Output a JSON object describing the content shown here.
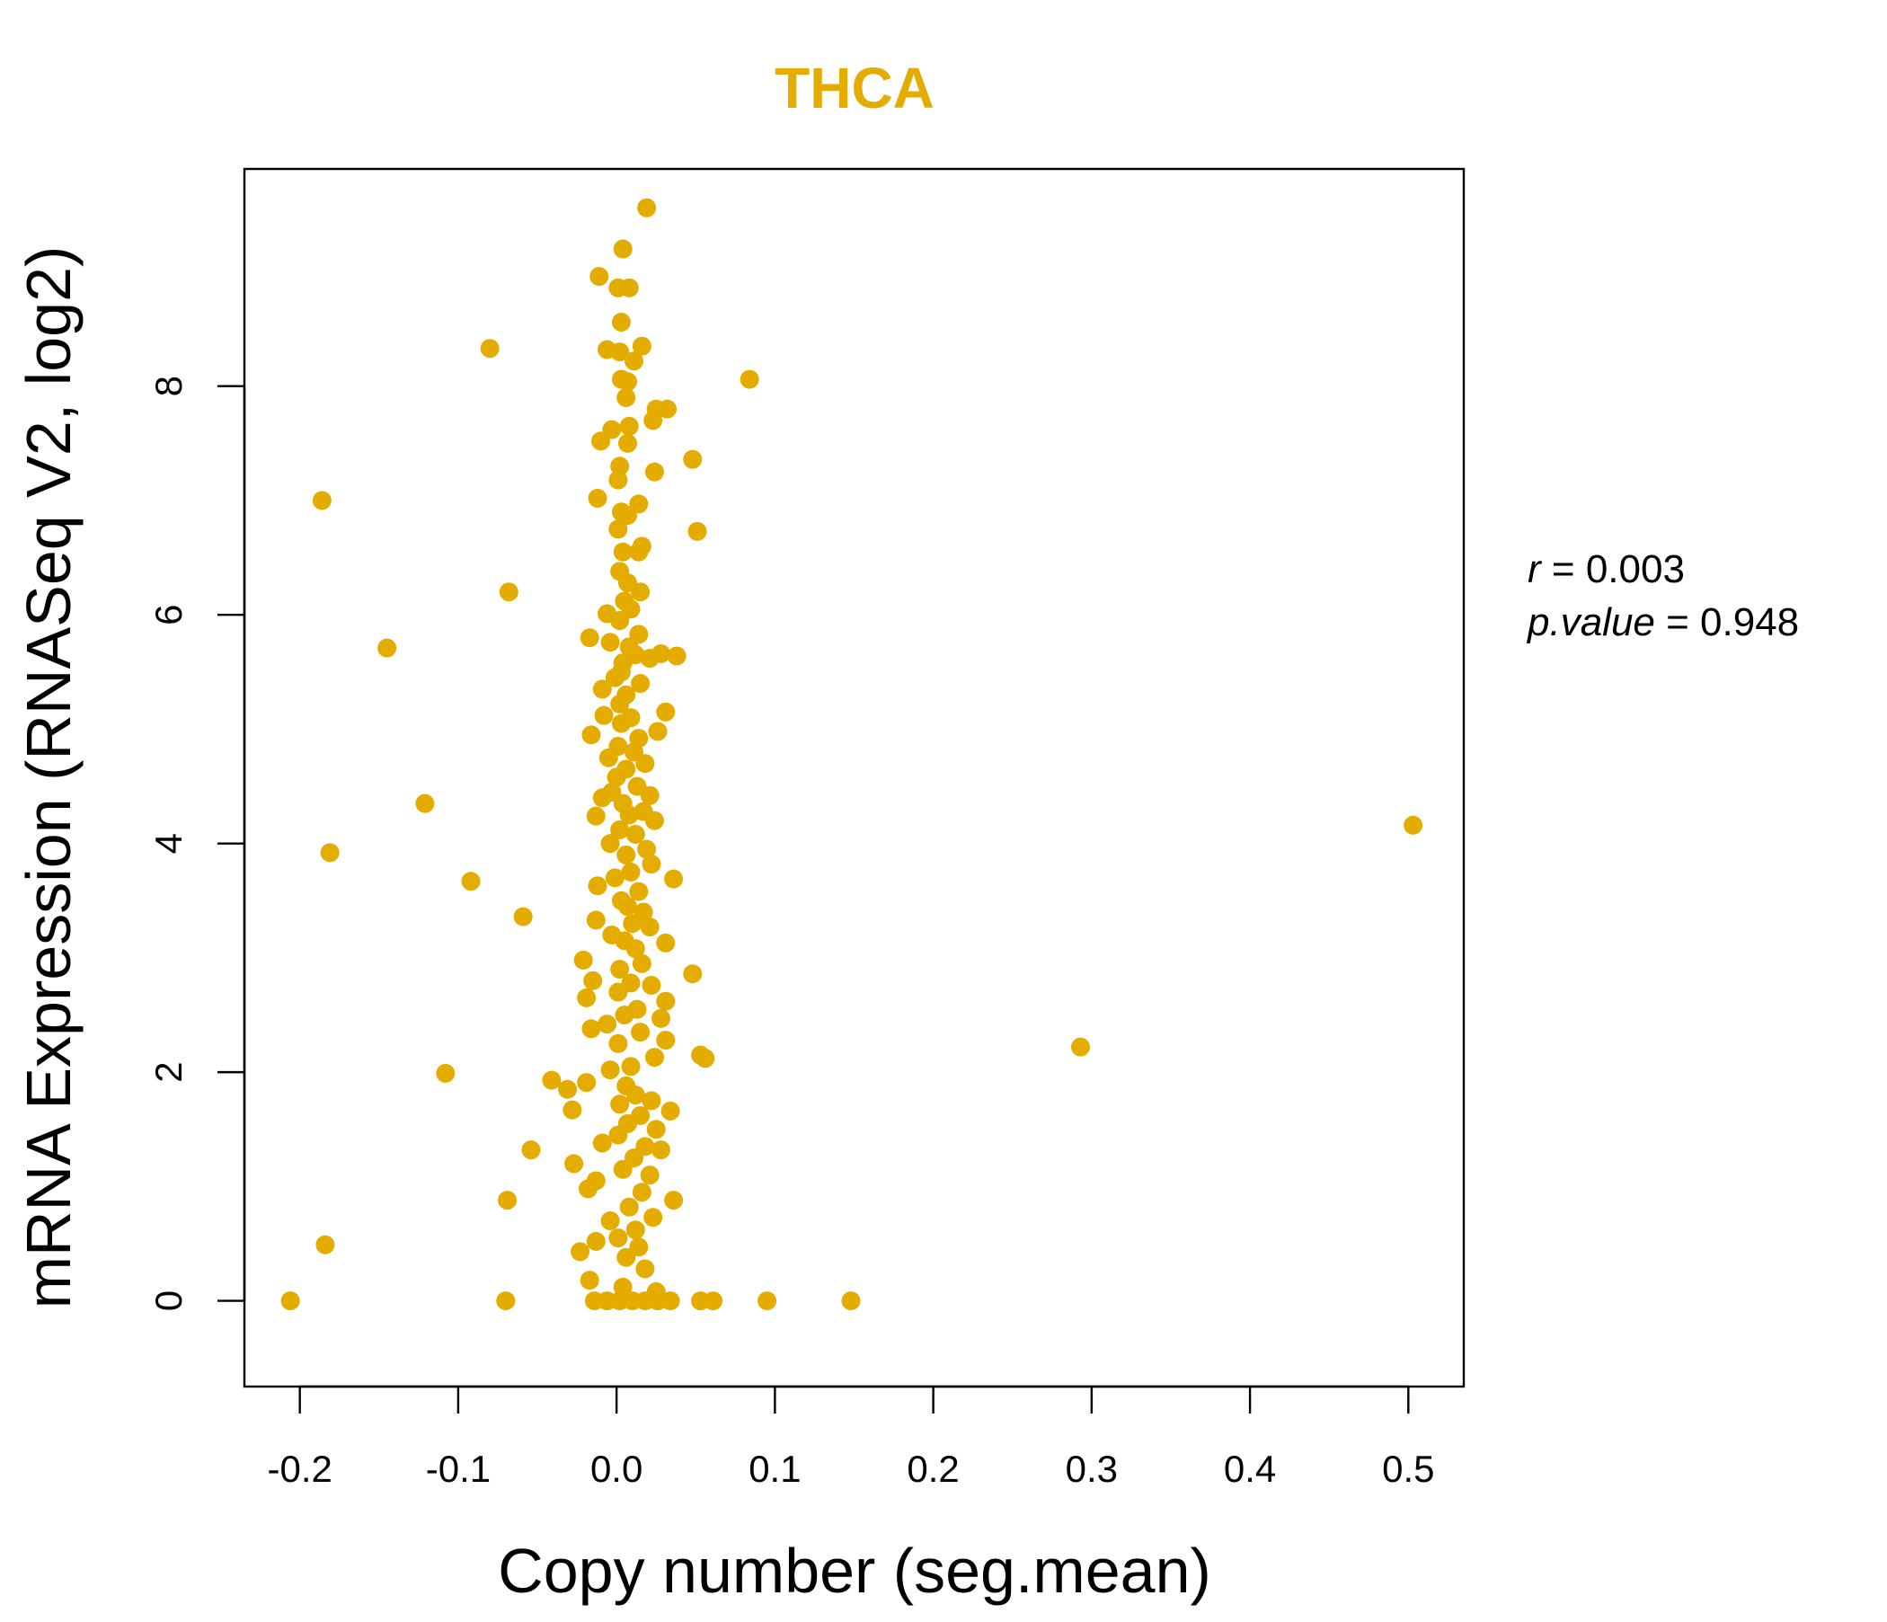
{
  "colors": {
    "point": "#E5AC00",
    "title": "#E5AC00",
    "axis": "#000000",
    "background": "#FFFFFF"
  },
  "stats": {
    "r_symbol": "r",
    "r_value": "0.003",
    "p_symbol": "p.value",
    "p_value": "0.948"
  },
  "chart_data": {
    "type": "scatter",
    "title": "THCA",
    "xlabel": "Copy number (seg.mean)",
    "ylabel": "mRNA Expression (RNASeq V2, log2)",
    "xlim": [
      -0.235,
      0.535
    ],
    "ylim": [
      -0.75,
      9.9
    ],
    "grid": false,
    "legend": "none",
    "x_ticks": [
      -0.2,
      -0.1,
      0.0,
      0.1,
      0.2,
      0.3,
      0.4,
      0.5
    ],
    "x_tick_labels": [
      "-0.2",
      "-0.1",
      "0.0",
      "0.1",
      "0.2",
      "0.3",
      "0.4",
      "0.5"
    ],
    "y_ticks": [
      0,
      2,
      4,
      6,
      8
    ],
    "y_tick_labels": [
      "0",
      "2",
      "4",
      "6",
      "8"
    ],
    "series": [
      {
        "points": [
          [
            0.019,
            9.56
          ],
          [
            0.004,
            9.2
          ],
          [
            -0.011,
            8.96
          ],
          [
            0.001,
            8.86
          ],
          [
            0.008,
            8.86
          ],
          [
            0.003,
            8.56
          ],
          [
            -0.08,
            8.33
          ],
          [
            0.016,
            8.35
          ],
          [
            -0.006,
            8.32
          ],
          [
            0.002,
            8.3
          ],
          [
            0.011,
            8.22
          ],
          [
            0.084,
            8.06
          ],
          [
            0.003,
            8.06
          ],
          [
            0.007,
            8.04
          ],
          [
            0.006,
            7.9
          ],
          [
            0.025,
            7.8
          ],
          [
            0.032,
            7.8
          ],
          [
            0.023,
            7.7
          ],
          [
            0.008,
            7.65
          ],
          [
            -0.003,
            7.62
          ],
          [
            -0.01,
            7.52
          ],
          [
            0.007,
            7.5
          ],
          [
            0.048,
            7.36
          ],
          [
            0.002,
            7.3
          ],
          [
            0.024,
            7.25
          ],
          [
            0.001,
            7.18
          ],
          [
            -0.186,
            7.0
          ],
          [
            -0.012,
            7.02
          ],
          [
            0.014,
            6.97
          ],
          [
            0.003,
            6.9
          ],
          [
            0.007,
            6.87
          ],
          [
            0.001,
            6.75
          ],
          [
            0.051,
            6.73
          ],
          [
            0.016,
            6.6
          ],
          [
            0.014,
            6.55
          ],
          [
            0.004,
            6.55
          ],
          [
            0.002,
            6.38
          ],
          [
            0.007,
            6.28
          ],
          [
            0.015,
            6.2
          ],
          [
            -0.068,
            6.2
          ],
          [
            0.005,
            6.12
          ],
          [
            0.009,
            6.05
          ],
          [
            -0.006,
            6.01
          ],
          [
            0.002,
            5.95
          ],
          [
            0.014,
            5.83
          ],
          [
            -0.017,
            5.8
          ],
          [
            -0.004,
            5.76
          ],
          [
            0.008,
            5.72
          ],
          [
            0.028,
            5.66
          ],
          [
            0.038,
            5.64
          ],
          [
            0.012,
            5.65
          ],
          [
            0.021,
            5.62
          ],
          [
            -0.145,
            5.71
          ],
          [
            0.004,
            5.58
          ],
          [
            0.003,
            5.5
          ],
          [
            -0.001,
            5.45
          ],
          [
            0.015,
            5.4
          ],
          [
            -0.009,
            5.35
          ],
          [
            0.006,
            5.3
          ],
          [
            0.002,
            5.22
          ],
          [
            0.031,
            5.15
          ],
          [
            -0.008,
            5.12
          ],
          [
            0.009,
            5.1
          ],
          [
            0.003,
            5.05
          ],
          [
            0.026,
            4.98
          ],
          [
            -0.016,
            4.95
          ],
          [
            0.014,
            4.92
          ],
          [
            0.001,
            4.85
          ],
          [
            0.011,
            4.8
          ],
          [
            -0.005,
            4.75
          ],
          [
            0.018,
            4.7
          ],
          [
            0.006,
            4.65
          ],
          [
            0.0,
            4.58
          ],
          [
            0.013,
            4.5
          ],
          [
            -0.003,
            4.45
          ],
          [
            0.021,
            4.42
          ],
          [
            -0.009,
            4.4
          ],
          [
            0.004,
            4.35
          ],
          [
            -0.121,
            4.35
          ],
          [
            0.017,
            4.28
          ],
          [
            0.008,
            4.25
          ],
          [
            -0.013,
            4.24
          ],
          [
            0.024,
            4.2
          ],
          [
            0.002,
            4.12
          ],
          [
            0.012,
            4.08
          ],
          [
            0.503,
            4.16
          ],
          [
            -0.004,
            4.0
          ],
          [
            0.019,
            3.95
          ],
          [
            0.006,
            3.9
          ],
          [
            -0.181,
            3.92
          ],
          [
            0.022,
            3.82
          ],
          [
            0.009,
            3.75
          ],
          [
            0.036,
            3.69
          ],
          [
            -0.092,
            3.67
          ],
          [
            -0.001,
            3.7
          ],
          [
            -0.012,
            3.63
          ],
          [
            0.014,
            3.58
          ],
          [
            0.003,
            3.5
          ],
          [
            0.007,
            3.45
          ],
          [
            0.017,
            3.4
          ],
          [
            -0.059,
            3.36
          ],
          [
            -0.013,
            3.33
          ],
          [
            0.01,
            3.3
          ],
          [
            0.021,
            3.27
          ],
          [
            -0.003,
            3.2
          ],
          [
            0.005,
            3.15
          ],
          [
            0.031,
            3.13
          ],
          [
            0.012,
            3.08
          ],
          [
            -0.021,
            2.98
          ],
          [
            0.016,
            2.95
          ],
          [
            0.002,
            2.9
          ],
          [
            0.048,
            2.86
          ],
          [
            -0.015,
            2.8
          ],
          [
            0.009,
            2.78
          ],
          [
            0.022,
            2.76
          ],
          [
            0.001,
            2.7
          ],
          [
            -0.019,
            2.65
          ],
          [
            0.031,
            2.62
          ],
          [
            0.013,
            2.55
          ],
          [
            0.005,
            2.5
          ],
          [
            0.028,
            2.47
          ],
          [
            -0.006,
            2.42
          ],
          [
            -0.016,
            2.38
          ],
          [
            0.015,
            2.35
          ],
          [
            0.031,
            2.28
          ],
          [
            0.001,
            2.25
          ],
          [
            0.293,
            2.22
          ],
          [
            0.053,
            2.15
          ],
          [
            0.056,
            2.12
          ],
          [
            0.024,
            2.13
          ],
          [
            0.009,
            2.05
          ],
          [
            -0.004,
            2.02
          ],
          [
            -0.108,
            1.99
          ],
          [
            -0.041,
            1.93
          ],
          [
            -0.019,
            1.91
          ],
          [
            0.006,
            1.88
          ],
          [
            -0.031,
            1.85
          ],
          [
            0.012,
            1.8
          ],
          [
            0.022,
            1.75
          ],
          [
            0.002,
            1.72
          ],
          [
            -0.028,
            1.67
          ],
          [
            0.034,
            1.66
          ],
          [
            0.015,
            1.62
          ],
          [
            0.007,
            1.55
          ],
          [
            0.025,
            1.5
          ],
          [
            0.001,
            1.45
          ],
          [
            -0.009,
            1.38
          ],
          [
            0.018,
            1.35
          ],
          [
            0.028,
            1.32
          ],
          [
            -0.054,
            1.32
          ],
          [
            0.011,
            1.25
          ],
          [
            -0.027,
            1.2
          ],
          [
            0.004,
            1.15
          ],
          [
            0.021,
            1.1
          ],
          [
            -0.013,
            1.05
          ],
          [
            -0.018,
            0.98
          ],
          [
            0.016,
            0.95
          ],
          [
            -0.069,
            0.88
          ],
          [
            0.036,
            0.88
          ],
          [
            0.008,
            0.82
          ],
          [
            0.023,
            0.73
          ],
          [
            -0.004,
            0.7
          ],
          [
            0.012,
            0.62
          ],
          [
            0.001,
            0.55
          ],
          [
            -0.013,
            0.52
          ],
          [
            0.014,
            0.47
          ],
          [
            -0.184,
            0.49
          ],
          [
            -0.023,
            0.43
          ],
          [
            0.006,
            0.38
          ],
          [
            0.018,
            0.28
          ],
          [
            -0.017,
            0.18
          ],
          [
            0.004,
            0.12
          ],
          [
            0.025,
            0.08
          ],
          [
            -0.206,
            0.0
          ],
          [
            -0.07,
            0.0
          ],
          [
            -0.014,
            0.0
          ],
          [
            -0.006,
            0.0
          ],
          [
            0.002,
            0.0
          ],
          [
            0.01,
            0.0
          ],
          [
            0.018,
            0.0
          ],
          [
            0.026,
            0.0
          ],
          [
            0.034,
            0.0
          ],
          [
            0.053,
            0.0
          ],
          [
            0.061,
            0.0
          ],
          [
            0.095,
            0.0
          ],
          [
            0.148,
            0.0
          ]
        ]
      }
    ]
  }
}
